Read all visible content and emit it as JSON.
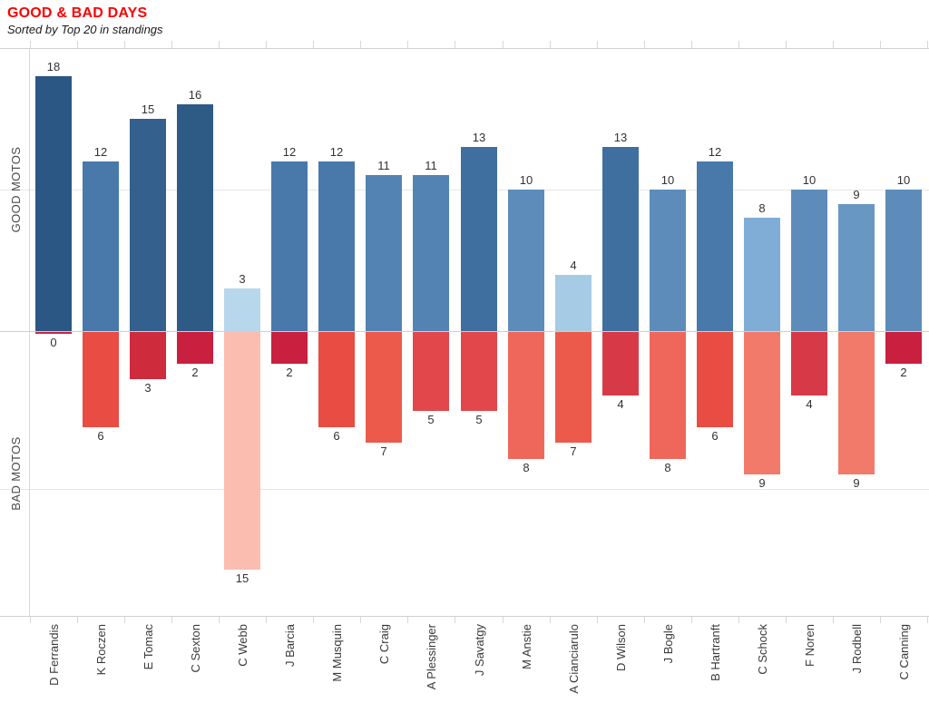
{
  "header": {
    "title": "GOOD & BAD DAYS",
    "subtitle": "Sorted by Top 20 in standings",
    "title_color": "#fe0000"
  },
  "chart_data": {
    "type": "bar",
    "variant": "diverging-vertical-columns",
    "title": "GOOD & BAD DAYS",
    "subtitle": "Sorted by Top 20 in standings",
    "grid": "on",
    "legend": "none",
    "value_labels_shown": true,
    "categories": [
      "D Ferrandis",
      "K Roczen",
      "E Tomac",
      "C Sexton",
      "C Webb",
      "J Barcia",
      "M Musquin",
      "C Craig",
      "A Plessinger",
      "J Savatgy",
      "M Anstie",
      "A Cianciarulo",
      "D Wilson",
      "J Bogle",
      "B Hartranft",
      "C Schock",
      "F Noren",
      "J Rodbell",
      "C Canning"
    ],
    "series": [
      {
        "name": "GOOD MOTOS",
        "direction": "up",
        "axis_max": 20,
        "gridline_at": 10,
        "values": [
          18,
          12,
          15,
          16,
          3,
          12,
          12,
          11,
          11,
          13,
          10,
          4,
          13,
          10,
          12,
          8,
          10,
          9,
          10
        ],
        "colors": [
          "#2a5783",
          "#4879aa",
          "#33608d",
          "#2e5a86",
          "#b7d8ec",
          "#4879aa",
          "#4879aa",
          "#5283b3",
          "#5283b3",
          "#3e6f9e",
          "#5d8cbb",
          "#a6cbe4",
          "#3e6f9e",
          "#5d8cbb",
          "#4879aa",
          "#7fadd6",
          "#5d8cbb",
          "#6897c4",
          "#5d8cbb"
        ]
      },
      {
        "name": "BAD MOTOS",
        "direction": "down",
        "axis_max": 18,
        "gridline_at": 10,
        "values": [
          0,
          6,
          3,
          2,
          15,
          2,
          6,
          7,
          5,
          5,
          8,
          7,
          4,
          8,
          6,
          9,
          4,
          9,
          2
        ],
        "colors": [
          "#c82440",
          "#e94c42",
          "#ce2b3d",
          "#c8203e",
          "#fcbdb1",
          "#c8203e",
          "#e94c42",
          "#ec5a4c",
          "#e1474b",
          "#e1474b",
          "#ef675b",
          "#ec5a4c",
          "#d73a46",
          "#ef675b",
          "#e94c42",
          "#f27a6a",
          "#d73a46",
          "#f27a6a",
          "#c8203e"
        ]
      }
    ]
  }
}
